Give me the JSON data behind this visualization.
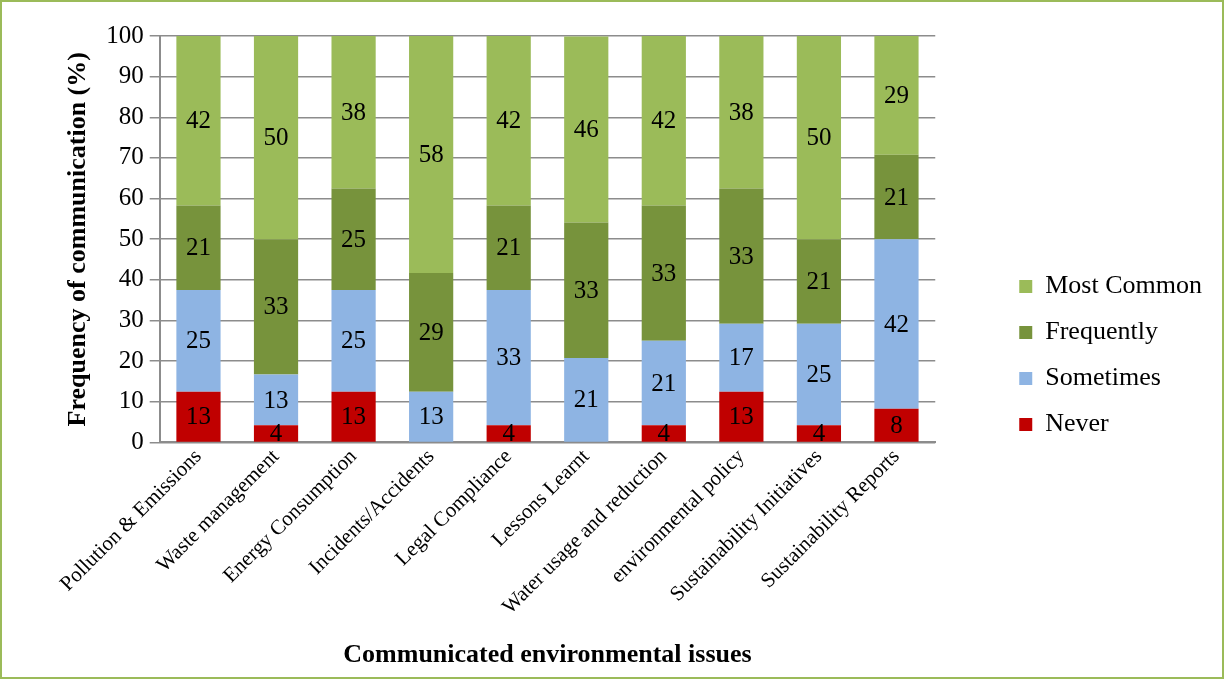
{
  "chart_data": {
    "type": "bar",
    "stacked": true,
    "xlabel": "Communicated environmental issues",
    "ylabel": "Frequency of communication (%)",
    "categories": [
      "Pollution & Emissions",
      "Waste management",
      "Energy Consumption",
      "Incidents/Accidents",
      "Legal Compliance",
      "Lessons Learnt",
      "Water usage and reduction",
      "environmental policy",
      "Sustainability Initiatives",
      "Sustainability Reports"
    ],
    "series": [
      {
        "name": "Never",
        "color": "#c00000",
        "values": [
          12.5,
          4.2,
          12.5,
          null,
          4.2,
          null,
          4.2,
          12.5,
          4.2,
          8.3
        ],
        "value_labels": [
          "13",
          "4",
          "13",
          null,
          "4",
          null,
          "4",
          "13",
          "4",
          "8"
        ]
      },
      {
        "name": "Sometimes",
        "color": "#8eb4e3",
        "values": [
          25,
          12.5,
          25,
          12.5,
          33.3,
          20.8,
          20.8,
          16.7,
          25,
          41.7
        ],
        "value_labels": [
          "25",
          "13",
          "25",
          "13",
          "33",
          "21",
          "21",
          "17",
          "25",
          "42"
        ]
      },
      {
        "name": "Frequently",
        "color": "#77933c",
        "values": [
          20.8,
          33.3,
          25,
          29.2,
          20.8,
          33.3,
          33.3,
          33.3,
          20.8,
          20.8
        ],
        "value_labels": [
          "21",
          "33",
          "25",
          "29",
          "21",
          "33",
          "33",
          "33",
          "21",
          "21"
        ]
      },
      {
        "name": "Most Common",
        "color": "#9bbb59",
        "values": [
          41.7,
          50,
          37.5,
          58.3,
          41.7,
          45.8,
          41.7,
          37.5,
          50,
          29.2
        ],
        "value_labels": [
          "42",
          "50",
          "38",
          "58",
          "42",
          "46",
          "42",
          "38",
          "50",
          "29"
        ]
      }
    ],
    "ylim": [
      0,
      100
    ],
    "yticks": [
      0,
      10,
      20,
      30,
      40,
      50,
      60,
      70,
      80,
      90,
      100
    ],
    "grid": "y",
    "legend": "right"
  }
}
